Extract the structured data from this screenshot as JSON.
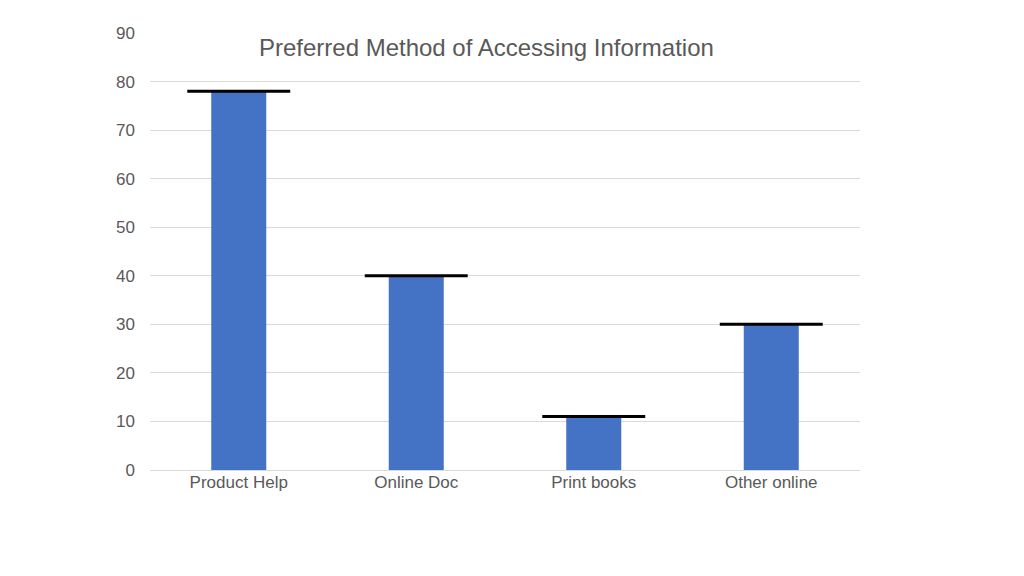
{
  "chart_data": {
    "type": "bar",
    "title": "Preferred Method of Accessing Information",
    "categories": [
      "Product Help",
      "Online Doc",
      "Print books",
      "Other online"
    ],
    "values": [
      78,
      40,
      11,
      30
    ],
    "color": "#4472c4",
    "ylim": [
      0,
      90
    ],
    "yticks": [
      0,
      10,
      20,
      30,
      40,
      50,
      60,
      70,
      80,
      90
    ],
    "grid": true
  }
}
